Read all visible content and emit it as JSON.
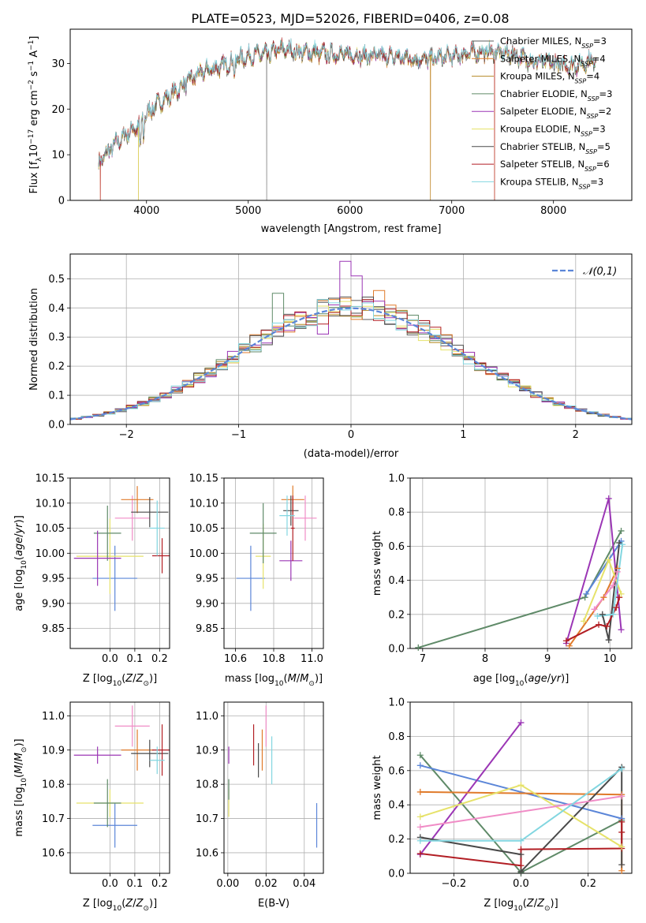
{
  "title": "PLATE=0523, MJD=52026, FIBERID=0406, z=0.08",
  "colors": [
    "#5c5c5c",
    "#e07b2b",
    "#b58a24",
    "#5f8a68",
    "#9b36b5",
    "#e6e26a",
    "#4a4a4a",
    "#b21e24",
    "#82d6e0"
  ],
  "chart_data": [
    {
      "id": "spectrum",
      "type": "line",
      "xlabel": "wavelength [Angstrom, rest frame]",
      "ylabel": "Flux [f_λ10^-17 erg cm^-2 s^-1 A^-1]",
      "xlim": [
        3250,
        8770
      ],
      "ylim": [
        0,
        37.5
      ],
      "xticks": [
        4000,
        5000,
        6000,
        7000,
        8000
      ],
      "yticks": [
        0,
        10,
        20,
        30
      ],
      "legend_position": "right",
      "series": [
        {
          "name": "Chabrier MILES, N_SSP=3",
          "label_main": "Chabrier MILES, N",
          "label_sub": "SSP",
          "label_tail": "=3"
        },
        {
          "name": "Salpeter MILES, N_SSP=4",
          "label_main": "Salpeter MILES, N",
          "label_sub": "SSP",
          "label_tail": "=4"
        },
        {
          "name": "Kroupa MILES, N_SSP=4",
          "label_main": "Kroupa MILES, N",
          "label_sub": "SSP",
          "label_tail": "=4"
        },
        {
          "name": "Chabrier ELODIE, N_SSP=3",
          "label_main": "Chabrier ELODIE, N",
          "label_sub": "SSP",
          "label_tail": "=3"
        },
        {
          "name": "Salpeter ELODIE, N_SSP=2",
          "label_main": "Salpeter ELODIE, N",
          "label_sub": "SSP",
          "label_tail": "=2"
        },
        {
          "name": "Kroupa ELODIE, N_SSP=3",
          "label_main": "Kroupa ELODIE, N",
          "label_sub": "SSP",
          "label_tail": "=3"
        },
        {
          "name": "Chabrier STELIB, N_SSP=5",
          "label_main": "Chabrier STELIB, N",
          "label_sub": "SSP",
          "label_tail": "=5"
        },
        {
          "name": "Salpeter STELIB, N_SSP=6",
          "label_main": "Salpeter STELIB, N",
          "label_sub": "SSP",
          "label_tail": "=6"
        },
        {
          "name": "Kroupa STELIB, N_SSP=3",
          "label_main": "Kroupa STELIB, N",
          "label_sub": "SSP",
          "label_tail": "=3"
        }
      ],
      "continuum": {
        "x": [
          3530,
          3600,
          3700,
          3800,
          3900,
          3950,
          4000,
          4100,
          4200,
          4300,
          4400,
          4500,
          4600,
          4700,
          4800,
          4900,
          5000,
          5100,
          5200,
          5300,
          5400,
          5500,
          5600,
          5800,
          6000,
          6200,
          6400,
          6600,
          6800,
          7000,
          7200,
          7400,
          7600,
          7800,
          8000,
          8200,
          8420
        ],
        "y": [
          8,
          10,
          12.5,
          14.5,
          16,
          17,
          19,
          21,
          22.5,
          24,
          26,
          27.5,
          28.5,
          29,
          30,
          31,
          31.5,
          32,
          32,
          33,
          33,
          32.5,
          32.5,
          32,
          32,
          31.5,
          31.5,
          31,
          31,
          31.5,
          32.5,
          32.5,
          32,
          30.5,
          30,
          29.5,
          31
        ]
      },
      "drops": [
        {
          "x": 3545,
          "series": [
            1,
            7
          ]
        },
        {
          "x": 3920,
          "series": [
            2,
            5
          ]
        },
        {
          "x": 5180,
          "series": [
            0
          ]
        },
        {
          "x": 6790,
          "series": [
            1,
            2
          ]
        },
        {
          "x": 7420,
          "series": [
            1,
            7
          ]
        }
      ]
    },
    {
      "id": "residuals",
      "type": "histogram",
      "xlabel": "(data-model)/error",
      "ylabel": "Normed distribution",
      "xlim": [
        -2.5,
        2.5
      ],
      "ylim": [
        0,
        0.585
      ],
      "xticks": [
        -2,
        -1,
        0,
        1,
        2
      ],
      "yticks": [
        0,
        0.1,
        0.2,
        0.3,
        0.4,
        0.5
      ],
      "bin_width": 0.1,
      "grid": true,
      "legend": {
        "position": "top-right",
        "label": "𝒩(0,1)"
      },
      "series_colors": [
        "#5c5c5c",
        "#e07b2b",
        "#b58a24",
        "#5f8a68",
        "#9b36b5",
        "#e6e26a",
        "#4a4a4a",
        "#b21e24",
        "#82d6e0"
      ],
      "highlights": [
        {
          "x": -0.05,
          "series": 4,
          "value": 0.56
        },
        {
          "x": -0.25,
          "series": 4,
          "value": 0.31
        },
        {
          "x": 0.05,
          "series": 4,
          "value": 0.51
        },
        {
          "x": -0.65,
          "series": 3,
          "value": 0.45
        },
        {
          "x": 0.25,
          "series": 1,
          "value": 0.46
        }
      ]
    },
    {
      "id": "age_vs_Z",
      "type": "scatter",
      "xlabel": "Z [log10(Z/Z⊙)]",
      "ylabel": "age  [log10(age/yr)]",
      "xlim": [
        -0.16,
        0.24
      ],
      "ylim": [
        9.81,
        10.15
      ],
      "xticks": [
        0.0,
        0.1,
        0.2
      ],
      "yticks": [
        9.85,
        9.9,
        9.95,
        10.0,
        10.05,
        10.1,
        10.15
      ],
      "grid": true,
      "points": [
        {
          "x": 0.02,
          "y": 9.95,
          "xerr": 0.09,
          "yerr": 0.065,
          "color": "#5b86d8"
        },
        {
          "x": 0.0,
          "y": 9.994,
          "xerr": 0.135,
          "yerr": 0.075,
          "color": "#e6e26a"
        },
        {
          "x": -0.01,
          "y": 10.04,
          "xerr": 0.055,
          "yerr": 0.055,
          "color": "#5f8a68"
        },
        {
          "x": -0.05,
          "y": 9.99,
          "xerr": 0.095,
          "yerr": 0.055,
          "color": "#9b36b5"
        },
        {
          "x": 0.09,
          "y": 10.07,
          "xerr": 0.07,
          "yerr": 0.045,
          "color": "#f08cc6"
        },
        {
          "x": 0.11,
          "y": 10.107,
          "xerr": 0.065,
          "yerr": 0.027,
          "color": "#e07b2b"
        },
        {
          "x": 0.16,
          "y": 10.082,
          "xerr": 0.075,
          "yerr": 0.03,
          "color": "#4a4a4a"
        },
        {
          "x": 0.21,
          "y": 9.995,
          "xerr": 0.04,
          "yerr": 0.035,
          "color": "#b21e24"
        },
        {
          "x": 0.19,
          "y": 10.05,
          "xerr": 0.03,
          "yerr": 0.055,
          "color": "#82d6e0"
        }
      ]
    },
    {
      "id": "age_vs_mass",
      "type": "scatter",
      "xlabel": "mass [log10(M/M⊙)]",
      "ylabel": "",
      "xlim": [
        10.54,
        11.06
      ],
      "ylim": [
        9.81,
        10.15
      ],
      "xticks": [
        10.6,
        10.8,
        11.0
      ],
      "yticks": [
        9.85,
        9.9,
        9.95,
        10.0,
        10.05,
        10.1,
        10.15
      ],
      "grid": true,
      "points": [
        {
          "x": 10.68,
          "y": 9.95,
          "xerr": 0.075,
          "yerr": 0.065,
          "color": "#5b86d8"
        },
        {
          "x": 10.745,
          "y": 9.994,
          "xerr": 0.04,
          "yerr": 0.065,
          "color": "#e6e26a"
        },
        {
          "x": 10.745,
          "y": 10.04,
          "xerr": 0.07,
          "yerr": 0.06,
          "color": "#5f8a68"
        },
        {
          "x": 10.89,
          "y": 9.985,
          "xerr": 0.06,
          "yerr": 0.04,
          "color": "#9b36b5"
        },
        {
          "x": 10.965,
          "y": 10.07,
          "xerr": 0.06,
          "yerr": 0.045,
          "color": "#f08cc6"
        },
        {
          "x": 10.9,
          "y": 10.107,
          "xerr": 0.06,
          "yerr": 0.028,
          "color": "#e07b2b"
        },
        {
          "x": 10.89,
          "y": 10.085,
          "xerr": 0.04,
          "yerr": 0.03,
          "color": "#4a4a4a"
        },
        {
          "x": 10.9,
          "y": 10.05,
          "xerr": 0.01,
          "yerr": 0.065,
          "color": "#b21e24"
        },
        {
          "x": 10.87,
          "y": 10.075,
          "xerr": 0.04,
          "yerr": 0.04,
          "color": "#82d6e0"
        }
      ]
    },
    {
      "id": "weight_vs_age",
      "type": "line",
      "xlabel": "age  [log10(age/yr)]",
      "ylabel": "mass weight",
      "xlim": [
        6.8,
        10.35
      ],
      "ylim": [
        0,
        1.0
      ],
      "xticks": [
        7,
        8,
        9,
        10
      ],
      "yticks": [
        0.0,
        0.2,
        0.4,
        0.6,
        0.8,
        1.0
      ],
      "grid": true,
      "series": [
        {
          "color": "#5f8a68",
          "x": [
            6.93,
            9.6,
            10.18
          ],
          "y": [
            0.005,
            0.3,
            0.69
          ]
        },
        {
          "color": "#5b86d8",
          "x": [
            9.62,
            10.18
          ],
          "y": [
            0.32,
            0.63
          ]
        },
        {
          "color": "#9b36b5",
          "x": [
            9.3,
            9.98,
            10.18
          ],
          "y": [
            0.03,
            0.88,
            0.11
          ]
        },
        {
          "color": "#e07b2b",
          "x": [
            9.35,
            9.9,
            10.12
          ],
          "y": [
            0.015,
            0.3,
            0.47
          ]
        },
        {
          "color": "#4a4a4a",
          "x": [
            9.88,
            9.98,
            10.15
          ],
          "y": [
            0.2,
            0.05,
            0.62
          ]
        },
        {
          "color": "#b21e24",
          "x": [
            9.3,
            9.82,
            9.95,
            10.1,
            10.15
          ],
          "y": [
            0.045,
            0.14,
            0.13,
            0.24,
            0.3
          ]
        },
        {
          "color": "#e6e26a",
          "x": [
            9.58,
            9.98,
            10.18
          ],
          "y": [
            0.16,
            0.52,
            0.32
          ]
        },
        {
          "color": "#f08cc6",
          "x": [
            9.75,
            10.05,
            10.12
          ],
          "y": [
            0.23,
            0.37,
            0.45
          ]
        },
        {
          "color": "#82d6e0",
          "x": [
            9.8,
            10.05,
            10.2
          ],
          "y": [
            0.19,
            0.2,
            0.61
          ]
        }
      ]
    },
    {
      "id": "mass_vs_Z",
      "type": "scatter",
      "xlabel": "Z [log10(Z/Z⊙)]",
      "ylabel": "mass [log10(M/M⊙)]",
      "xlim": [
        -0.16,
        0.24
      ],
      "ylim": [
        10.54,
        11.04
      ],
      "xticks": [
        0.0,
        0.1,
        0.2
      ],
      "yticks": [
        10.6,
        10.7,
        10.8,
        10.9,
        11.0
      ],
      "grid": true,
      "points": [
        {
          "x": 0.02,
          "y": 10.68,
          "xerr": 0.09,
          "yerr": 0.065,
          "color": "#5b86d8"
        },
        {
          "x": 0.0,
          "y": 10.745,
          "xerr": 0.135,
          "yerr": 0.04,
          "color": "#e6e26a"
        },
        {
          "x": -0.01,
          "y": 10.745,
          "xerr": 0.055,
          "yerr": 0.07,
          "color": "#5f8a68"
        },
        {
          "x": -0.05,
          "y": 10.885,
          "xerr": 0.095,
          "yerr": 0.025,
          "color": "#9b36b5"
        },
        {
          "x": 0.09,
          "y": 10.97,
          "xerr": 0.07,
          "yerr": 0.06,
          "color": "#f08cc6"
        },
        {
          "x": 0.11,
          "y": 10.9,
          "xerr": 0.065,
          "yerr": 0.06,
          "color": "#e07b2b"
        },
        {
          "x": 0.16,
          "y": 10.89,
          "xerr": 0.075,
          "yerr": 0.04,
          "color": "#4a4a4a"
        },
        {
          "x": 0.21,
          "y": 10.9,
          "xerr": 0.04,
          "yerr": 0.075,
          "color": "#b21e24"
        },
        {
          "x": 0.19,
          "y": 10.87,
          "xerr": 0.03,
          "yerr": 0.04,
          "color": "#82d6e0"
        }
      ]
    },
    {
      "id": "mass_vs_ebv",
      "type": "scatter",
      "xlabel": "E(B-V)",
      "ylabel": "",
      "xlim": [
        -0.002,
        0.05
      ],
      "ylim": [
        10.54,
        11.04
      ],
      "xticks": [
        0.0,
        0.02,
        0.04
      ],
      "yticks": [
        10.6,
        10.7,
        10.8,
        10.9,
        11.0
      ],
      "grid": true,
      "points": [
        {
          "x": 0.0465,
          "y": 10.68,
          "xerr": 0,
          "yerr": 0.065,
          "color": "#5b86d8"
        },
        {
          "x": 0.0005,
          "y": 10.745,
          "xerr": 0,
          "yerr": 0.04,
          "color": "#e6e26a"
        },
        {
          "x": 0.0005,
          "y": 10.785,
          "xerr": 0,
          "yerr": 0.03,
          "color": "#5f8a68"
        },
        {
          "x": 0.0005,
          "y": 10.885,
          "xerr": 0,
          "yerr": 0.025,
          "color": "#9b36b5"
        },
        {
          "x": 0.02,
          "y": 10.97,
          "xerr": 0,
          "yerr": 0.06,
          "color": "#f08cc6"
        },
        {
          "x": 0.018,
          "y": 10.9,
          "xerr": 0,
          "yerr": 0.06,
          "color": "#e07b2b"
        },
        {
          "x": 0.016,
          "y": 10.87,
          "xerr": 0,
          "yerr": 0.05,
          "color": "#4a4a4a"
        },
        {
          "x": 0.0135,
          "y": 10.915,
          "xerr": 0,
          "yerr": 0.06,
          "color": "#b21e24"
        },
        {
          "x": 0.023,
          "y": 10.87,
          "xerr": 0,
          "yerr": 0.07,
          "color": "#82d6e0"
        }
      ]
    },
    {
      "id": "weight_vs_Z",
      "type": "line",
      "xlabel": "Z [log10(Z/Z⊙)]",
      "ylabel": "mass weight",
      "xlim": [
        -0.33,
        0.33
      ],
      "ylim": [
        0,
        1.0
      ],
      "xticks": [
        -0.2,
        0.0,
        0.2
      ],
      "yticks": [
        0.0,
        0.2,
        0.4,
        0.6,
        0.8,
        1.0
      ],
      "grid": true,
      "series": [
        {
          "color": "#5f8a68",
          "x": [
            -0.3,
            0.0,
            0.3
          ],
          "y": [
            0.69,
            0.005,
            0.31
          ]
        },
        {
          "color": "#5b86d8",
          "x": [
            -0.3,
            0.3
          ],
          "y": [
            0.63,
            0.32
          ]
        },
        {
          "color": "#9b36b5",
          "x": [
            -0.3,
            0.0
          ],
          "y": [
            0.11,
            0.88
          ]
        },
        {
          "color": "#e07b2b",
          "x": [
            -0.3,
            0.3,
            0.3
          ],
          "y": [
            0.475,
            0.46,
            0.015
          ]
        },
        {
          "color": "#4a4a4a",
          "x": [
            -0.3,
            0.0,
            0.0,
            0.3,
            0.3
          ],
          "y": [
            0.21,
            0.11,
            0.01,
            0.62,
            0.05
          ]
        },
        {
          "color": "#b21e24",
          "x": [
            -0.3,
            0.0,
            0.0,
            0.3,
            0.3,
            0.3
          ],
          "y": [
            0.115,
            0.045,
            0.14,
            0.145,
            0.24,
            0.3
          ]
        },
        {
          "color": "#e6e26a",
          "x": [
            -0.3,
            0.0,
            0.3
          ],
          "y": [
            0.33,
            0.515,
            0.155
          ]
        },
        {
          "color": "#f08cc6",
          "x": [
            -0.3,
            0.3
          ],
          "y": [
            0.27,
            0.45
          ]
        },
        {
          "color": "#82d6e0",
          "x": [
            -0.3,
            0.0,
            0.3
          ],
          "y": [
            0.19,
            0.19,
            0.61
          ]
        }
      ]
    }
  ]
}
